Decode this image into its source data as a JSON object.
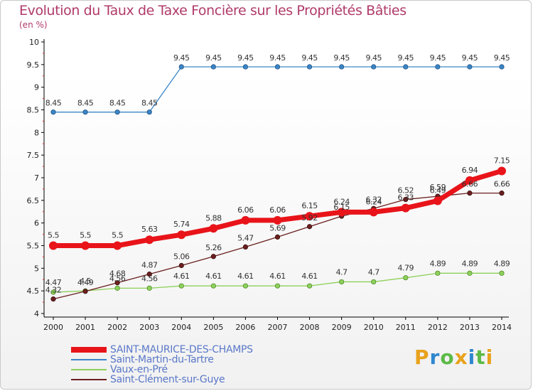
{
  "title": "Evolution du Taux de Taxe Foncière sur les Propriétés Bâties",
  "unit_label": "(en %)",
  "logo_text": "Proxiti",
  "chart_data": {
    "type": "line",
    "title": "Evolution du Taux de Taxe Foncière sur les Propriétés Bâties",
    "xlabel": "",
    "ylabel": "(en %)",
    "ylim": [
      4,
      10
    ],
    "y_ticks": [
      "4",
      "4.5",
      "5",
      "5.5",
      "6",
      "6.5",
      "7",
      "7.5",
      "8",
      "8.5",
      "9",
      "9.5",
      "10"
    ],
    "x": [
      "2000",
      "2001",
      "2002",
      "2003",
      "2004",
      "2005",
      "2006",
      "2007",
      "2008",
      "2009",
      "2010",
      "2011",
      "2012",
      "2013",
      "2014"
    ],
    "series": [
      {
        "name": "SAINT-MAURICE-DES-CHAMPS",
        "color": "#e8141a",
        "values": [
          5.5,
          5.5,
          5.5,
          5.63,
          5.74,
          5.88,
          6.06,
          6.06,
          6.15,
          6.24,
          6.24,
          6.33,
          6.49,
          6.94,
          7.15
        ],
        "labels": [
          "5.5",
          "5.5",
          "5.5",
          "5.63",
          "5.74",
          "5.88",
          "6.06",
          "6.06",
          "6.15",
          "6.24",
          "6.24",
          "6.33",
          "6.49",
          "6.94",
          "7.15"
        ]
      },
      {
        "name": "Saint-Martin-du-Tartre",
        "color": "#3a86c8",
        "values": [
          8.45,
          8.45,
          8.45,
          8.45,
          9.45,
          9.45,
          9.45,
          9.45,
          9.45,
          9.45,
          9.45,
          9.45,
          9.45,
          9.45,
          9.45
        ],
        "labels": [
          "8.45",
          "8.45",
          "8.45",
          "8.45",
          "9.45",
          "9.45",
          "9.45",
          "9.45",
          "9.45",
          "9.45",
          "9.45",
          "9.45",
          "9.45",
          "9.45",
          "9.45"
        ]
      },
      {
        "name": "Vaux-en-Pré",
        "color": "#8ed15a",
        "values": [
          4.47,
          4.5,
          4.56,
          4.56,
          4.61,
          4.61,
          4.61,
          4.61,
          4.61,
          4.7,
          4.7,
          4.79,
          4.89,
          4.89,
          4.89
        ],
        "labels": [
          "4.47",
          "4.5",
          "4.56",
          "4.56",
          "4.61",
          "4.61",
          "4.61",
          "4.61",
          "4.61",
          "4.7",
          "4.7",
          "4.79",
          "4.89",
          "4.89",
          "4.89"
        ]
      },
      {
        "name": "Saint-Clément-sur-Guye",
        "color": "#6b1f1f",
        "values": [
          4.32,
          4.49,
          4.68,
          4.87,
          5.06,
          5.26,
          5.47,
          5.69,
          5.92,
          6.15,
          6.32,
          6.52,
          6.59,
          6.66,
          6.66
        ],
        "labels": [
          "4.32",
          "4.49",
          "4.68",
          "4.87",
          "5.06",
          "5.26",
          "5.47",
          "5.69",
          "5.92",
          "6.15",
          "6.32",
          "6.52",
          "6.59",
          "6.66",
          "6.66"
        ]
      }
    ],
    "grid": false,
    "legend": "bottom-left"
  }
}
